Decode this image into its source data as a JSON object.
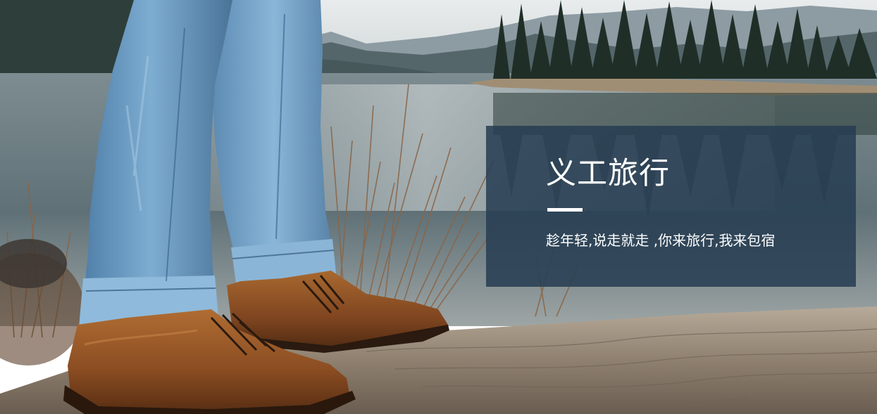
{
  "banner": {
    "title": "义工旅行",
    "subtitle": "趁年轻,说走就走 ,你来旅行,我来包宿"
  },
  "colors": {
    "overlay": "#273d52",
    "text": "#ffffff",
    "sky": "#d8dddd",
    "lake": "#6f8187",
    "denim": "#6d9cc4",
    "boot": "#8a4f24",
    "log": "#9c8d7b"
  }
}
